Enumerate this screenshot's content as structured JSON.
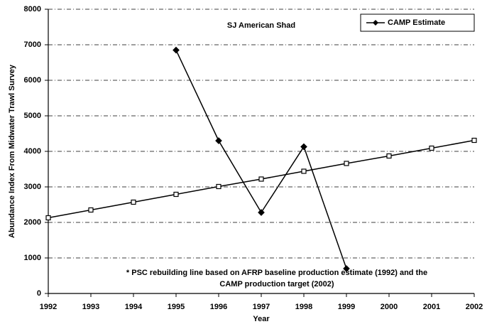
{
  "chart_data": {
    "type": "line",
    "title": "SJ American Shad",
    "x_label": "Year",
    "y_label": "Abundance Index From Midwater Trawl Survey",
    "x": [
      1992,
      1993,
      1994,
      1995,
      1996,
      1997,
      1998,
      1999,
      2000,
      2001,
      2002
    ],
    "series": [
      {
        "name": "CAMP Estimate",
        "color": "#000000",
        "marker": "diamond",
        "values": [
          null,
          null,
          null,
          6850,
          4300,
          2280,
          4130,
          700,
          null,
          null,
          null
        ]
      },
      {
        "color": "#000000",
        "marker": "square",
        "values": [
          2130,
          2350,
          2570,
          2790,
          3010,
          3220,
          3440,
          3660,
          3870,
          4090,
          4310
        ]
      }
    ],
    "annotation": [
      "* PSC rebuilding line based on AFRP baseline production estimate (1992) and the",
      "CAMP production target (2002)"
    ],
    "xlim": [
      1992,
      2002
    ],
    "xticks": [
      1992,
      1993,
      1994,
      1995,
      1996,
      1997,
      1998,
      1999,
      2000,
      2001,
      2002
    ],
    "ylim": [
      0,
      8000
    ],
    "yticks": [
      0,
      1000,
      2000,
      3000,
      4000,
      5000,
      6000,
      7000,
      8000
    ],
    "grid": true,
    "legend": "top-right"
  }
}
